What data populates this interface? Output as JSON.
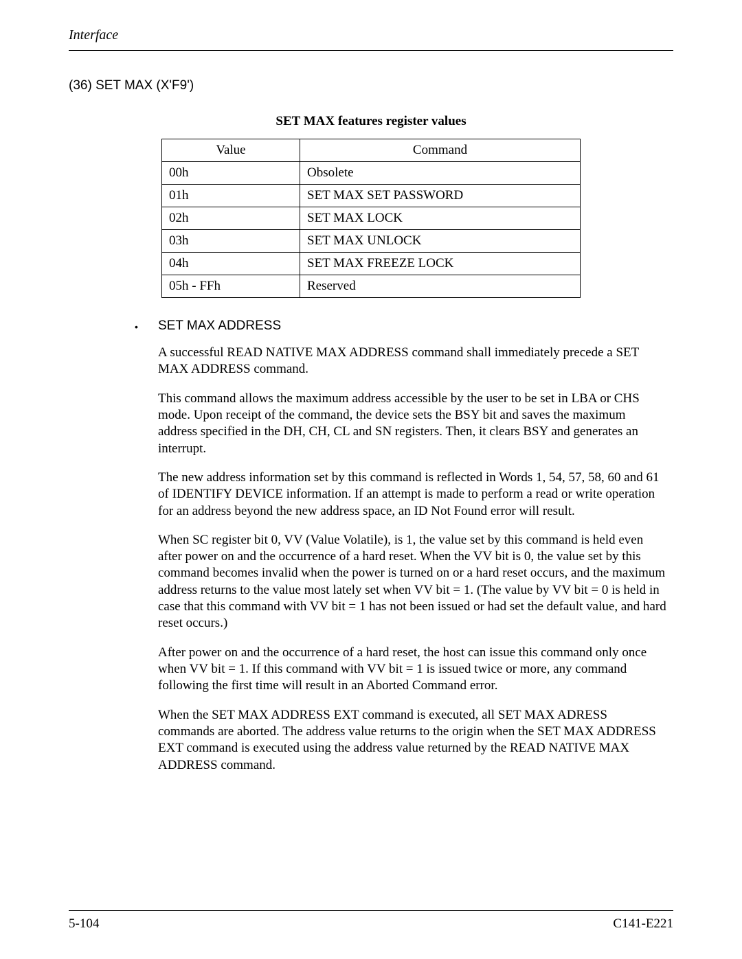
{
  "header": {
    "running": "Interface"
  },
  "section": {
    "heading": "(36)  SET MAX (X'F9')"
  },
  "table": {
    "caption": "SET MAX features register values",
    "columns": [
      "Value",
      "Command"
    ],
    "rows": [
      [
        "00h",
        "Obsolete"
      ],
      [
        "01h",
        "SET MAX SET PASSWORD"
      ],
      [
        "02h",
        "SET MAX LOCK"
      ],
      [
        "03h",
        "SET MAX UNLOCK"
      ],
      [
        "04h",
        "SET MAX FREEZE LOCK"
      ],
      [
        "05h - FFh",
        "Reserved"
      ]
    ]
  },
  "subsection": {
    "bullet": "•",
    "heading": "SET MAX ADDRESS",
    "paragraphs": [
      "A successful READ NATIVE MAX ADDRESS command shall immediately precede a SET MAX ADDRESS command.",
      "This command allows the maximum address accessible by the user to be set in LBA or CHS mode. Upon receipt of the command, the device sets the BSY bit and saves the maximum address specified in the DH, CH, CL and SN registers. Then, it clears BSY and generates an interrupt.",
      "The new address information set by this command is reflected in Words 1, 54, 57, 58, 60 and 61 of IDENTIFY DEVICE information. If an attempt is made to perform a read or write operation for an address beyond the new address space, an ID Not Found error will result.",
      "When SC register bit 0, VV (Value Volatile), is 1, the value set by this command is held even after power on and the occurrence of a hard reset. When the VV bit is 0, the value set by this command becomes invalid when the power is turned on or a hard reset occurs, and the maximum address returns to the value most lately set when VV bit = 1.  (The value by VV bit = 0 is held in case that this command with VV bit = 1 has not been issued or had set the default value, and hard reset occurs.)",
      "After power on and the occurrence of a hard reset, the host can issue this command only once when VV bit = 1. If this command with VV bit = 1 is issued twice or more, any command following the first time will result in an Aborted Command error.",
      "When the SET MAX ADDRESS EXT command is executed, all SET MAX ADRESS commands are aborted. The address value returns to the origin when the SET MAX ADDRESS EXT command is executed using the address value returned by the READ NATIVE MAX ADDRESS command."
    ]
  },
  "footer": {
    "left": "5-104",
    "right": "C141-E221"
  }
}
